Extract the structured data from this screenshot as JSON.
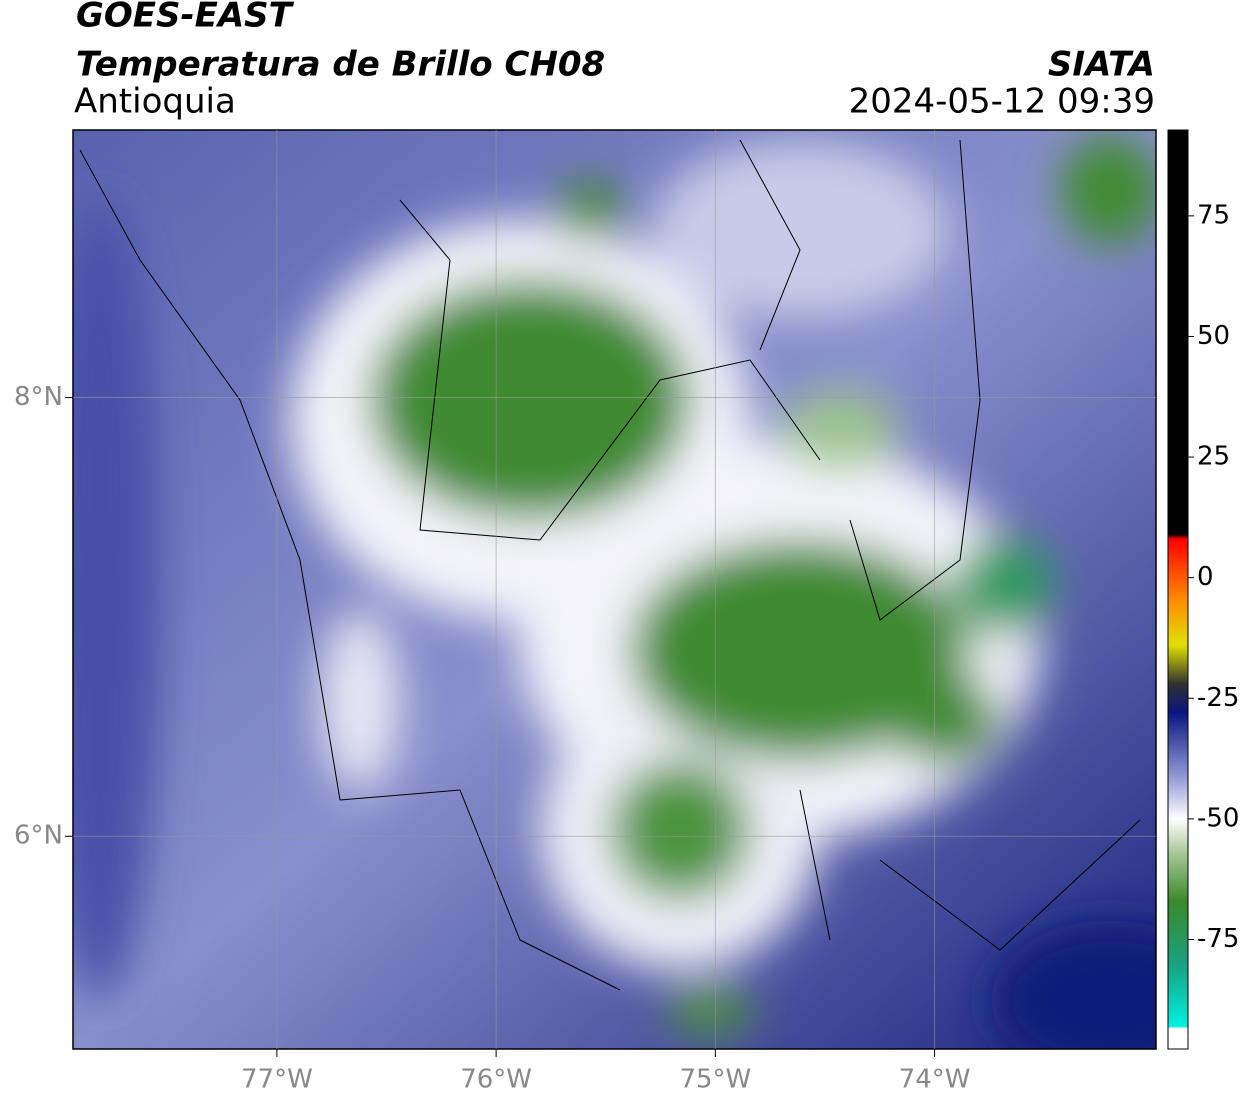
{
  "header": {
    "title": "GOES-EAST",
    "subtitle": "Temperatura de Brillo CH08",
    "source": "SIATA",
    "region": "Antioquia",
    "timestamp": "2024-05-12 09:39"
  },
  "map": {
    "lonlim": [
      -77.93,
      -72.99
    ],
    "latlim": [
      5.03,
      9.22
    ],
    "lonticks": [
      {
        "value": -77,
        "label": "77°W"
      },
      {
        "value": -76,
        "label": "76°W"
      },
      {
        "value": -75,
        "label": "75°W"
      },
      {
        "value": -74,
        "label": "74°W"
      }
    ],
    "latticks": [
      {
        "value": 8,
        "label": "8°N"
      },
      {
        "value": 6,
        "label": "6°N"
      }
    ],
    "grid": true
  },
  "colorbar": {
    "lim": [
      -97.7,
      92.8
    ],
    "ticks": [
      75,
      50,
      25,
      0,
      -25,
      -50,
      -75
    ],
    "stops": [
      {
        "value": -97.7,
        "color": "#ffffff"
      },
      {
        "value": -93.5,
        "color": "#ffffff"
      },
      {
        "value": -93,
        "color": "#00f0e0"
      },
      {
        "value": -80,
        "color": "#1aa080"
      },
      {
        "value": -67,
        "color": "#3c8a2a"
      },
      {
        "value": -57,
        "color": "#a8c89a"
      },
      {
        "value": -50,
        "color": "#ffffff"
      },
      {
        "value": -42,
        "color": "#9aa0d8"
      },
      {
        "value": -33,
        "color": "#3c4aa0"
      },
      {
        "value": -28,
        "color": "#0a1680"
      },
      {
        "value": -22,
        "color": "#303030"
      },
      {
        "value": -14,
        "color": "#e0e000"
      },
      {
        "value": -5,
        "color": "#ff9000"
      },
      {
        "value": 8,
        "color": "#ff0000"
      },
      {
        "value": 9,
        "color": "#000000"
      },
      {
        "value": 92.8,
        "color": "#000000"
      }
    ]
  }
}
